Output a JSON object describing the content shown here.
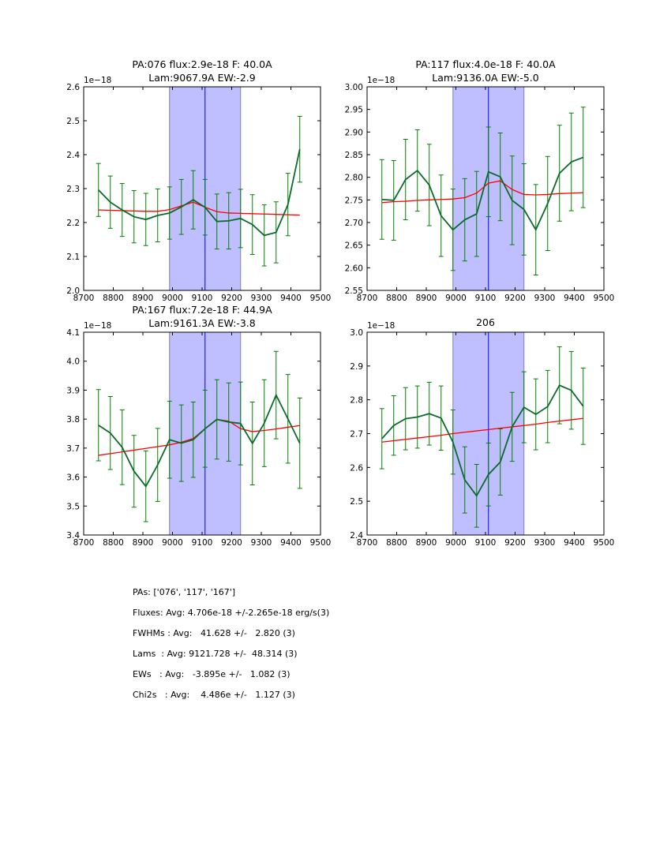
{
  "figure": {
    "background": "#ffffff",
    "colors": {
      "spectrum": "#0b6b2b",
      "errorbar": "#008000",
      "fit": "#ff0000",
      "window_fill": "#bfbfff",
      "window_edge": "#8080b0",
      "line_center": "#0000ff"
    }
  },
  "chart_data": [
    {
      "type": "line",
      "title": [
        "PA:076 flux:2.9e-18 F: 40.0A",
        "Lam:9067.9A EW:-2.9"
      ],
      "offset_label": "1e−18",
      "xlabel": "",
      "ylabel": "",
      "xlim": [
        8700,
        9500
      ],
      "ylim": [
        2.0,
        2.6
      ],
      "xticks": [
        8700,
        8800,
        8900,
        9000,
        9100,
        9200,
        9300,
        9400,
        9500
      ],
      "yticks": [
        "2.0",
        "2.1",
        "2.2",
        "2.3",
        "2.4",
        "2.5",
        "2.6"
      ],
      "shaded_window": [
        8990,
        9230
      ],
      "center_line": 9110,
      "x": [
        8750,
        8790,
        8830,
        8870,
        8910,
        8950,
        8990,
        9030,
        9070,
        9110,
        9150,
        9190,
        9230,
        9270,
        9310,
        9350,
        9390,
        9430
      ],
      "series": [
        {
          "name": "spectrum",
          "values": [
            2.296,
            2.26,
            2.237,
            2.217,
            2.209,
            2.221,
            2.228,
            2.246,
            2.267,
            2.245,
            2.203,
            2.205,
            2.212,
            2.194,
            2.162,
            2.171,
            2.253,
            2.416
          ],
          "errors": [
            0.078,
            0.077,
            0.078,
            0.077,
            0.077,
            0.078,
            0.077,
            0.081,
            0.086,
            0.082,
            0.081,
            0.083,
            0.086,
            0.088,
            0.09,
            0.09,
            0.092,
            0.097
          ]
        },
        {
          "name": "fit",
          "values": [
            2.237,
            2.236,
            2.235,
            2.234,
            2.233,
            2.233,
            2.238,
            2.249,
            2.26,
            2.245,
            2.232,
            2.228,
            2.227,
            2.226,
            2.225,
            2.224,
            2.223,
            2.222
          ]
        }
      ]
    },
    {
      "type": "line",
      "title": [
        "PA:117 flux:4.0e-18 F: 40.0A",
        "Lam:9136.0A EW:-5.0"
      ],
      "offset_label": "1e−18",
      "xlabel": "",
      "ylabel": "",
      "xlim": [
        8700,
        9500
      ],
      "ylim": [
        2.55,
        3.0
      ],
      "xticks": [
        8700,
        8800,
        8900,
        9000,
        9100,
        9200,
        9300,
        9400,
        9500
      ],
      "yticks": [
        "2.55",
        "2.60",
        "2.65",
        "2.70",
        "2.75",
        "2.80",
        "2.85",
        "2.90",
        "2.95",
        "3.00"
      ],
      "shaded_window": [
        8990,
        9230
      ],
      "center_line": 9110,
      "x": [
        8750,
        8790,
        8830,
        8870,
        8910,
        8950,
        8990,
        9030,
        9070,
        9110,
        9150,
        9190,
        9230,
        9270,
        9310,
        9350,
        9390,
        9430
      ],
      "series": [
        {
          "name": "spectrum",
          "values": [
            2.751,
            2.749,
            2.795,
            2.815,
            2.783,
            2.715,
            2.684,
            2.706,
            2.719,
            2.812,
            2.801,
            2.749,
            2.729,
            2.684,
            2.742,
            2.809,
            2.834,
            2.844
          ],
          "errors": [
            0.088,
            0.088,
            0.089,
            0.09,
            0.09,
            0.09,
            0.09,
            0.091,
            0.094,
            0.099,
            0.097,
            0.098,
            0.101,
            0.1,
            0.104,
            0.106,
            0.108,
            0.111
          ]
        },
        {
          "name": "fit",
          "values": [
            2.744,
            2.746,
            2.747,
            2.749,
            2.75,
            2.751,
            2.752,
            2.755,
            2.765,
            2.787,
            2.792,
            2.773,
            2.762,
            2.761,
            2.762,
            2.764,
            2.765,
            2.766
          ]
        }
      ]
    },
    {
      "type": "line",
      "title": [
        "PA:167 flux:7.2e-18 F: 44.9A",
        "Lam:9161.3A EW:-3.8"
      ],
      "offset_label": "1e−18",
      "xlabel": "",
      "ylabel": "",
      "xlim": [
        8700,
        9500
      ],
      "ylim": [
        3.4,
        4.1
      ],
      "xticks": [
        8700,
        8800,
        8900,
        9000,
        9100,
        9200,
        9300,
        9400,
        9500
      ],
      "yticks": [
        "3.4",
        "3.5",
        "3.6",
        "3.7",
        "3.8",
        "3.9",
        "4.0",
        "4.1"
      ],
      "shaded_window": [
        8990,
        9230
      ],
      "center_line": 9110,
      "x": [
        8750,
        8790,
        8830,
        8870,
        8910,
        8950,
        8990,
        9030,
        9070,
        9110,
        9150,
        9190,
        9230,
        9270,
        9310,
        9350,
        9390,
        9430
      ],
      "series": [
        {
          "name": "spectrum",
          "values": [
            3.779,
            3.752,
            3.703,
            3.62,
            3.568,
            3.642,
            3.729,
            3.717,
            3.729,
            3.767,
            3.799,
            3.79,
            3.785,
            3.716,
            3.786,
            3.883,
            3.801,
            3.717
          ],
          "errors": [
            0.123,
            0.126,
            0.129,
            0.124,
            0.122,
            0.126,
            0.133,
            0.132,
            0.13,
            0.133,
            0.137,
            0.135,
            0.143,
            0.143,
            0.15,
            0.151,
            0.153,
            0.156
          ]
        },
        {
          "name": "fit",
          "values": [
            3.675,
            3.681,
            3.687,
            3.693,
            3.699,
            3.705,
            3.711,
            3.72,
            3.733,
            3.767,
            3.799,
            3.793,
            3.767,
            3.757,
            3.761,
            3.766,
            3.772,
            3.778
          ]
        }
      ]
    },
    {
      "type": "line",
      "title": [
        "206"
      ],
      "offset_label": "1e−18",
      "xlabel": "",
      "ylabel": "",
      "xlim": [
        8700,
        9500
      ],
      "ylim": [
        2.4,
        3.0
      ],
      "xticks": [
        8700,
        8800,
        8900,
        9000,
        9100,
        9200,
        9300,
        9400,
        9500
      ],
      "yticks": [
        "2.4",
        "2.5",
        "2.6",
        "2.7",
        "2.8",
        "2.9",
        "3.0"
      ],
      "shaded_window": [
        8990,
        9230
      ],
      "center_line": 9110,
      "x": [
        8750,
        8790,
        8830,
        8870,
        8910,
        8950,
        8990,
        9030,
        9070,
        9110,
        9150,
        9190,
        9230,
        9270,
        9310,
        9350,
        9390,
        9430
      ],
      "series": [
        {
          "name": "spectrum",
          "values": [
            2.685,
            2.724,
            2.744,
            2.749,
            2.759,
            2.746,
            2.675,
            2.563,
            2.516,
            2.579,
            2.616,
            2.72,
            2.778,
            2.757,
            2.78,
            2.843,
            2.828,
            2.781
          ],
          "errors": [
            0.089,
            0.088,
            0.092,
            0.092,
            0.093,
            0.095,
            0.095,
            0.098,
            0.093,
            0.093,
            0.098,
            0.102,
            0.105,
            0.105,
            0.107,
            0.114,
            0.115,
            0.113
          ]
        },
        {
          "name": "fit",
          "values": [
            2.675,
            2.679,
            2.683,
            2.687,
            2.691,
            2.695,
            2.7,
            2.704,
            2.708,
            2.712,
            2.716,
            2.72,
            2.724,
            2.728,
            2.733,
            2.737,
            2.741,
            2.745
          ]
        }
      ]
    }
  ],
  "stats": {
    "lines": [
      "PAs: ['076', '117', '167']",
      "Fluxes: Avg: 4.706e-18 +/-2.265e-18 erg/s(3)",
      "FWHMs : Avg:   41.628 +/-   2.820 (3)",
      "Lams  : Avg: 9121.728 +/-  48.314 (3)",
      "EWs   : Avg:   -3.895e +/-   1.082 (3)",
      "Chi2s   : Avg:    4.486e +/-   1.127 (3)"
    ]
  }
}
